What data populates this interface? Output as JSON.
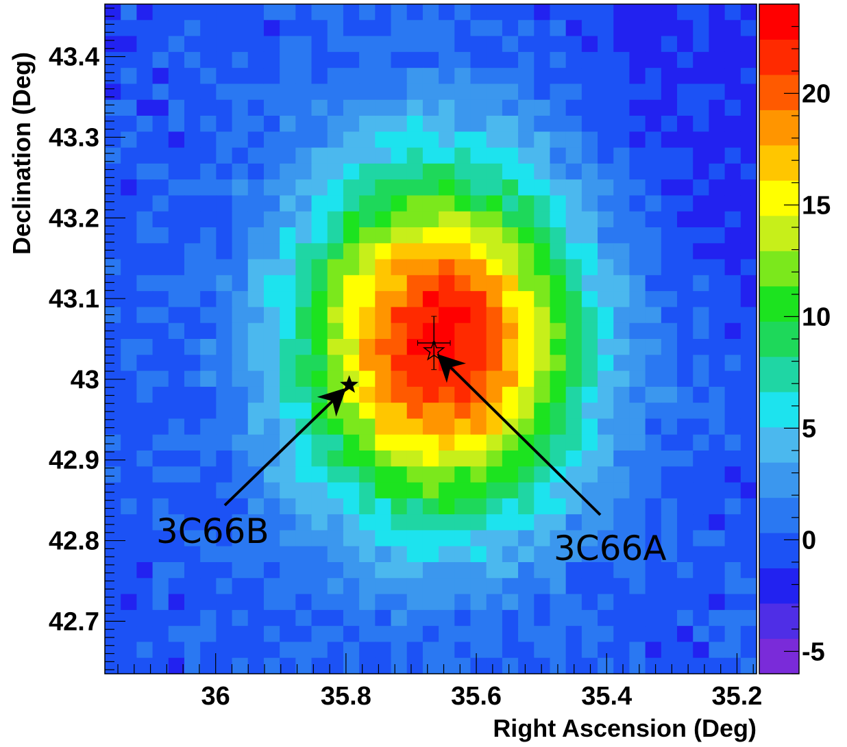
{
  "chart_data": {
    "type": "heatmap",
    "title": "",
    "xlabel": "Right Ascension (Deg)",
    "ylabel": "Declination (Deg)",
    "xlim": [
      36.17,
      35.17
    ],
    "ylim": [
      42.635,
      43.465
    ],
    "x_reversed": true,
    "x_ticks": [
      {
        "value": 36.0,
        "label": "36"
      },
      {
        "value": 35.8,
        "label": "35.8"
      },
      {
        "value": 35.6,
        "label": "35.6"
      },
      {
        "value": 35.4,
        "label": "35.4"
      },
      {
        "value": 35.2,
        "label": "35.2"
      }
    ],
    "y_ticks": [
      {
        "value": 42.7,
        "label": "42.7"
      },
      {
        "value": 42.8,
        "label": "42.8"
      },
      {
        "value": 42.9,
        "label": "42.9"
      },
      {
        "value": 43.0,
        "label": "43"
      },
      {
        "value": 43.1,
        "label": "43.1"
      },
      {
        "value": 43.2,
        "label": "43.2"
      },
      {
        "value": 43.3,
        "label": "43.3"
      },
      {
        "value": 43.4,
        "label": "43.4"
      }
    ],
    "grid": false,
    "colorbar": {
      "placement": "right",
      "range": [
        -6,
        24
      ],
      "ticks": [
        {
          "value": -5,
          "label": "-5"
        },
        {
          "value": 0,
          "label": "0"
        },
        {
          "value": 5,
          "label": "5"
        },
        {
          "value": 10,
          "label": "10"
        },
        {
          "value": 15,
          "label": "15"
        },
        {
          "value": 20,
          "label": "20"
        }
      ],
      "colors": [
        "#7a2bd9",
        "#4f2ee6",
        "#2222f0",
        "#1c52f5",
        "#2a78f2",
        "#3b97ee",
        "#4bb8ee",
        "#1de3ee",
        "#1fd6a4",
        "#1ed85a",
        "#1ce31f",
        "#7be81c",
        "#c7ef1a",
        "#ffff00",
        "#ffc600",
        "#ff9500",
        "#ff5a00",
        "#ff2a00",
        "#ff0000"
      ]
    },
    "grid_cells": {
      "nx": 41,
      "ny": 42
    },
    "peak": {
      "ra": 35.655,
      "dec": 43.045,
      "value": 23.5
    },
    "markers": [
      {
        "name": "3C66B",
        "ra": 35.795,
        "dec": 42.993,
        "symbol": "filled-star"
      },
      {
        "name": "3C66A",
        "ra": 35.665,
        "dec": 43.035,
        "symbol": "open-star"
      }
    ],
    "best_fit": {
      "ra": 35.665,
      "dec": 43.045,
      "ra_err": 0.025,
      "dec_err": 0.033
    },
    "annotations": [
      {
        "text": "3C66B",
        "points_to": "3C66B"
      },
      {
        "text": "3C66A",
        "points_to": "3C66A"
      }
    ]
  }
}
